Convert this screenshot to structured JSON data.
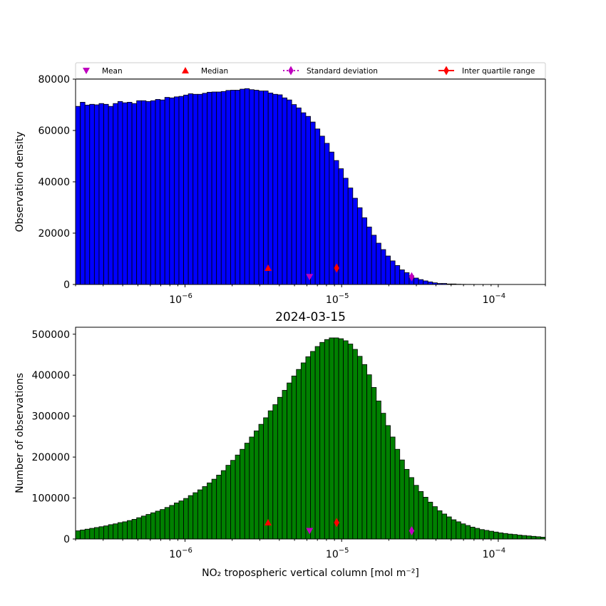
{
  "chart_data": [
    {
      "type": "bar",
      "id": "top",
      "title": "",
      "xlabel": "",
      "ylabel": "Observation density",
      "xscale": "log",
      "xlim": [
        2e-07,
        0.0002
      ],
      "ylim": [
        0,
        80000
      ],
      "yticks": [
        0,
        20000,
        40000,
        60000,
        80000
      ],
      "ytick_labels": [
        "0",
        "20000",
        "40000",
        "60000",
        "80000"
      ],
      "xticks": [
        {
          "base": "10",
          "exp": "−6",
          "value": 1e-06
        },
        {
          "base": "10",
          "exp": "−5",
          "value": 1e-05
        },
        {
          "base": "10",
          "exp": "−4",
          "value": 0.0001
        }
      ],
      "bins": 100,
      "bar_color": "#0000ff",
      "values": [
        69400,
        71000,
        69900,
        70200,
        70000,
        70500,
        70200,
        69400,
        70500,
        71300,
        70800,
        71000,
        70500,
        71600,
        71600,
        71300,
        71600,
        72100,
        71900,
        72900,
        72700,
        73100,
        73300,
        73800,
        74300,
        74100,
        74100,
        74500,
        74900,
        75000,
        75000,
        75200,
        75600,
        75700,
        75700,
        76100,
        76300,
        75900,
        75700,
        75400,
        75400,
        74600,
        74100,
        73900,
        72700,
        71900,
        70100,
        68800,
        66900,
        65500,
        63300,
        60600,
        57800,
        55000,
        51600,
        48300,
        45100,
        41400,
        37600,
        33600,
        29900,
        26000,
        22400,
        19200,
        16100,
        13600,
        11100,
        9200,
        7400,
        5700,
        4600,
        3400,
        2500,
        1900,
        1400,
        1000,
        650,
        400,
        400,
        200,
        200,
        100,
        60,
        50,
        40,
        30,
        20,
        10,
        0,
        0,
        0,
        0,
        0,
        0,
        0,
        0,
        0,
        0,
        0,
        0
      ],
      "markers": [
        {
          "name": "Median",
          "shape": "triangle-up",
          "color": "#ff0000",
          "x": 3.39e-06,
          "y": 6400
        },
        {
          "name": "Mean",
          "shape": "triangle-down",
          "color": "#bf00bf",
          "x": 6.24e-06,
          "y": 3000
        },
        {
          "name": "Inter quartile range",
          "shape": "diamond",
          "color": "#ff0000",
          "x": 9.29e-06,
          "y": 6400
        },
        {
          "name": "Standard deviation",
          "shape": "diamond",
          "color": "#bf00bf",
          "x": 2.8e-05,
          "y": 3000
        }
      ]
    },
    {
      "type": "bar",
      "id": "bottom",
      "title": "2024-03-15",
      "xlabel": "NO₂ tropospheric vertical column [mol m⁻²]",
      "ylabel": "Number of observations",
      "xscale": "log",
      "xlim": [
        2e-07,
        0.0002
      ],
      "ylim": [
        0,
        517000
      ],
      "yticks": [
        0,
        100000,
        200000,
        300000,
        400000,
        500000
      ],
      "ytick_labels": [
        "0",
        "100000",
        "200000",
        "300000",
        "400000",
        "500000"
      ],
      "xticks": [
        {
          "base": "10",
          "exp": "−6",
          "value": 1e-06
        },
        {
          "base": "10",
          "exp": "−5",
          "value": 1e-05
        },
        {
          "base": "10",
          "exp": "−4",
          "value": 0.0001
        }
      ],
      "bins": 100,
      "bar_color": "#008000",
      "values": [
        20000,
        22000,
        24000,
        26000,
        28000,
        30000,
        32000,
        35000,
        37000,
        40000,
        42000,
        45000,
        48000,
        52000,
        56000,
        60000,
        64000,
        68000,
        72000,
        77000,
        82000,
        88000,
        93000,
        99000,
        106000,
        113000,
        120000,
        128000,
        137000,
        146000,
        156000,
        167000,
        180000,
        192000,
        205000,
        219000,
        234000,
        249000,
        264000,
        280000,
        296000,
        313000,
        328000,
        346000,
        363000,
        381000,
        398000,
        414000,
        430000,
        445000,
        458000,
        470000,
        480000,
        487000,
        491000,
        491000,
        489000,
        484000,
        476000,
        463000,
        446000,
        426000,
        401000,
        370000,
        337000,
        307000,
        277000,
        249000,
        219000,
        193000,
        170000,
        150000,
        131000,
        116000,
        102000,
        90000,
        79000,
        69000,
        61000,
        54000,
        47000,
        42000,
        37000,
        33000,
        29000,
        26000,
        23000,
        21000,
        19000,
        17000,
        15000,
        13500,
        12000,
        11000,
        9500,
        8500,
        7500,
        6500,
        5500,
        4500
      ],
      "markers": [
        {
          "name": "Median",
          "shape": "triangle-up",
          "color": "#ff0000",
          "x": 3.39e-06,
          "y": 40000
        },
        {
          "name": "Mean",
          "shape": "triangle-down",
          "color": "#bf00bf",
          "x": 6.24e-06,
          "y": 20000
        },
        {
          "name": "Inter quartile range",
          "shape": "diamond",
          "color": "#ff0000",
          "x": 9.29e-06,
          "y": 40000
        },
        {
          "name": "Standard deviation",
          "shape": "diamond",
          "color": "#bf00bf",
          "x": 2.8e-05,
          "y": 20000
        }
      ]
    }
  ],
  "legend": {
    "placement": "top",
    "entries": [
      {
        "label": "Mean",
        "shape": "triangle-down",
        "color": "#bf00bf",
        "line": "none"
      },
      {
        "label": "Median",
        "shape": "triangle-up",
        "color": "#ff0000",
        "line": "none"
      },
      {
        "label": "Standard deviation",
        "shape": "diamond",
        "color": "#bf00bf",
        "line": "dotted"
      },
      {
        "label": "Inter quartile range",
        "shape": "diamond",
        "color": "#ff0000",
        "line": "solid"
      }
    ]
  }
}
